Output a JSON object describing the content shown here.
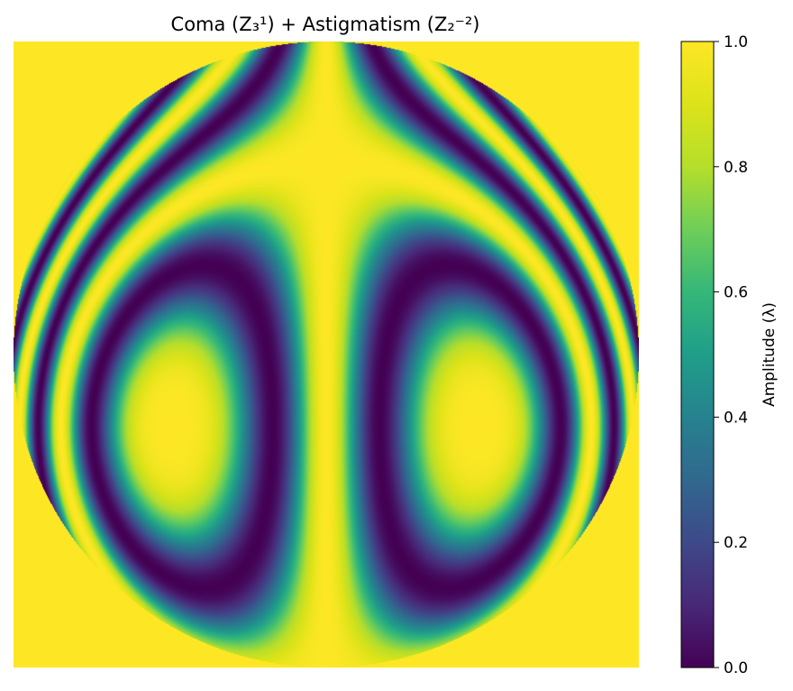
{
  "chart_data": {
    "type": "heatmap",
    "title": "Coma (Z₃¹) + Astigmatism (Z₂⁻²)",
    "colormap": "viridis",
    "outside_value": 1.0,
    "grid": false,
    "axes_visible": false,
    "colorbar": {
      "label": "Amplitude (λ)",
      "range": [
        0.0,
        1.0
      ],
      "ticks": [
        {
          "value": 0.0,
          "label": "0.0"
        },
        {
          "value": 0.2,
          "label": "0.2"
        },
        {
          "value": 0.4,
          "label": "0.4"
        },
        {
          "value": 0.6,
          "label": "0.6"
        },
        {
          "value": 0.8,
          "label": "0.8"
        },
        {
          "value": 1.0,
          "label": "1.0"
        }
      ]
    }
  }
}
